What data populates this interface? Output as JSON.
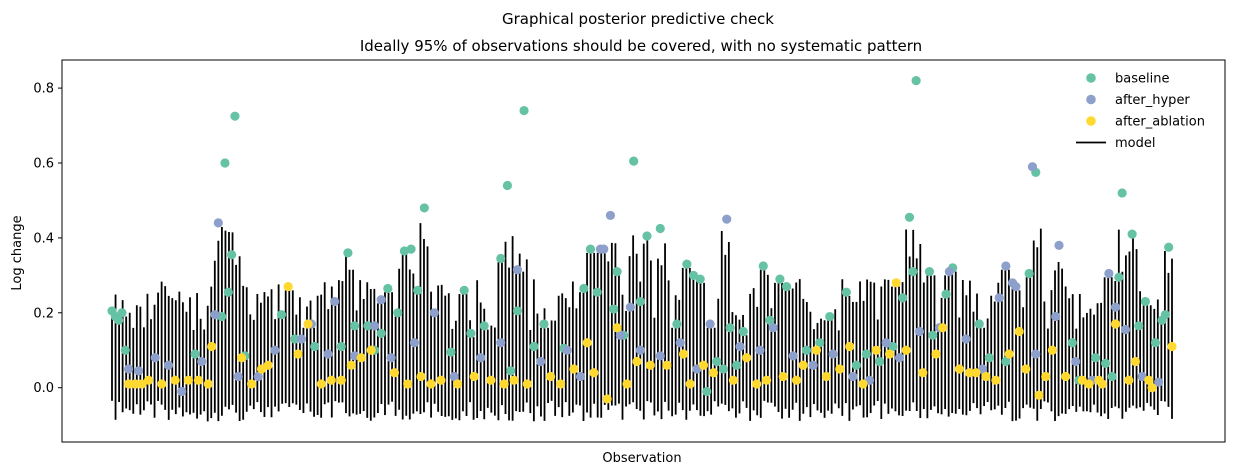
{
  "chart_data": {
    "type": "scatter",
    "suptitle": "Graphical posterior predictive check",
    "title": "Ideally 95% of observations should be covered, with no systematic pattern",
    "xlabel": "Observation",
    "ylabel": "Log change",
    "x_count": 300,
    "ylim": [
      -0.145,
      0.875
    ],
    "yticks": [
      0.0,
      0.2,
      0.4,
      0.6,
      0.8
    ],
    "ytick_labels": [
      "0.0",
      "0.2",
      "0.4",
      "0.6",
      "0.8"
    ],
    "legend": {
      "position": "top-right",
      "entries": [
        {
          "label": "baseline",
          "kind": "marker",
          "color": "#66c2a5"
        },
        {
          "label": "after_hyper",
          "kind": "marker",
          "color": "#8da0cb"
        },
        {
          "label": "after_ablation",
          "kind": "marker",
          "color": "#ffd92f"
        },
        {
          "label": "model",
          "kind": "line",
          "color": "#000000"
        }
      ]
    },
    "series": [
      {
        "name": "baseline",
        "color": "#66c2a5",
        "points": [
          {
            "x": 1,
            "y": 0.205
          },
          {
            "x": 2,
            "y": 0.19
          },
          {
            "x": 3,
            "y": 0.18
          },
          {
            "x": 4,
            "y": 0.2
          },
          {
            "x": 5,
            "y": 0.1
          },
          {
            "x": 26,
            "y": 0.09
          },
          {
            "x": 34,
            "y": 0.19
          },
          {
            "x": 35,
            "y": 0.6
          },
          {
            "x": 36,
            "y": 0.255
          },
          {
            "x": 37,
            "y": 0.355
          },
          {
            "x": 38,
            "y": 0.725
          },
          {
            "x": 41,
            "y": 0.085
          },
          {
            "x": 52,
            "y": 0.195
          },
          {
            "x": 56,
            "y": 0.13
          },
          {
            "x": 62,
            "y": 0.11
          },
          {
            "x": 70,
            "y": 0.11
          },
          {
            "x": 72,
            "y": 0.36
          },
          {
            "x": 74,
            "y": 0.165
          },
          {
            "x": 78,
            "y": 0.165
          },
          {
            "x": 80,
            "y": 0.1
          },
          {
            "x": 82,
            "y": 0.145
          },
          {
            "x": 84,
            "y": 0.265
          },
          {
            "x": 87,
            "y": 0.2
          },
          {
            "x": 89,
            "y": 0.365
          },
          {
            "x": 91,
            "y": 0.37
          },
          {
            "x": 93,
            "y": 0.26
          },
          {
            "x": 95,
            "y": 0.48
          },
          {
            "x": 103,
            "y": 0.095
          },
          {
            "x": 107,
            "y": 0.26
          },
          {
            "x": 109,
            "y": 0.145
          },
          {
            "x": 113,
            "y": 0.165
          },
          {
            "x": 118,
            "y": 0.345
          },
          {
            "x": 120,
            "y": 0.54
          },
          {
            "x": 121,
            "y": 0.045
          },
          {
            "x": 123,
            "y": 0.205
          },
          {
            "x": 125,
            "y": 0.74
          },
          {
            "x": 128,
            "y": 0.11
          },
          {
            "x": 131,
            "y": 0.17
          },
          {
            "x": 137,
            "y": 0.105
          },
          {
            "x": 143,
            "y": 0.265
          },
          {
            "x": 145,
            "y": 0.37
          },
          {
            "x": 147,
            "y": 0.255
          },
          {
            "x": 152,
            "y": 0.21
          },
          {
            "x": 153,
            "y": 0.31
          },
          {
            "x": 155,
            "y": 0.14
          },
          {
            "x": 158,
            "y": 0.605
          },
          {
            "x": 160,
            "y": 0.23
          },
          {
            "x": 162,
            "y": 0.405
          },
          {
            "x": 166,
            "y": 0.425
          },
          {
            "x": 171,
            "y": 0.17
          },
          {
            "x": 174,
            "y": 0.33
          },
          {
            "x": 176,
            "y": 0.3
          },
          {
            "x": 178,
            "y": 0.29
          },
          {
            "x": 180,
            "y": -0.01
          },
          {
            "x": 183,
            "y": 0.07
          },
          {
            "x": 185,
            "y": 0.05
          },
          {
            "x": 187,
            "y": 0.16
          },
          {
            "x": 189,
            "y": 0.06
          },
          {
            "x": 191,
            "y": 0.15
          },
          {
            "x": 197,
            "y": 0.325
          },
          {
            "x": 199,
            "y": 0.18
          },
          {
            "x": 202,
            "y": 0.29
          },
          {
            "x": 204,
            "y": 0.27
          },
          {
            "x": 210,
            "y": 0.1
          },
          {
            "x": 214,
            "y": 0.12
          },
          {
            "x": 217,
            "y": 0.19
          },
          {
            "x": 222,
            "y": 0.255
          },
          {
            "x": 225,
            "y": 0.06
          },
          {
            "x": 228,
            "y": 0.09
          },
          {
            "x": 232,
            "y": 0.07
          },
          {
            "x": 236,
            "y": 0.11
          },
          {
            "x": 239,
            "y": 0.24
          },
          {
            "x": 241,
            "y": 0.455
          },
          {
            "x": 242,
            "y": 0.31
          },
          {
            "x": 243,
            "y": 0.82
          },
          {
            "x": 247,
            "y": 0.31
          },
          {
            "x": 248,
            "y": 0.14
          },
          {
            "x": 252,
            "y": 0.25
          },
          {
            "x": 254,
            "y": 0.32
          },
          {
            "x": 262,
            "y": 0.17
          },
          {
            "x": 265,
            "y": 0.08
          },
          {
            "x": 270,
            "y": 0.07
          },
          {
            "x": 277,
            "y": 0.305
          },
          {
            "x": 279,
            "y": 0.575
          },
          {
            "x": 290,
            "y": 0.12
          },
          {
            "x": 292,
            "y": 0.02
          },
          {
            "x": 297,
            "y": 0.08
          },
          {
            "x": 300,
            "y": 0.065
          },
          {
            "x": 302,
            "y": 0.03
          },
          {
            "x": 304,
            "y": 0.295
          },
          {
            "x": 305,
            "y": 0.52
          },
          {
            "x": 308,
            "y": 0.41
          },
          {
            "x": 310,
            "y": 0.165
          },
          {
            "x": 312,
            "y": 0.23
          },
          {
            "x": 315,
            "y": 0.12
          },
          {
            "x": 317,
            "y": 0.18
          },
          {
            "x": 318,
            "y": 0.195
          },
          {
            "x": 319,
            "y": 0.375
          }
        ]
      },
      {
        "name": "after_hyper",
        "color": "#8da0cb",
        "points": [
          {
            "x": 6,
            "y": 0.05
          },
          {
            "x": 9,
            "y": 0.045
          },
          {
            "x": 14,
            "y": 0.08
          },
          {
            "x": 18,
            "y": 0.06
          },
          {
            "x": 22,
            "y": -0.01
          },
          {
            "x": 28,
            "y": 0.07
          },
          {
            "x": 33,
            "y": 0.44
          },
          {
            "x": 32,
            "y": 0.195
          },
          {
            "x": 39,
            "y": 0.03
          },
          {
            "x": 45,
            "y": 0.03
          },
          {
            "x": 50,
            "y": 0.1
          },
          {
            "x": 58,
            "y": 0.13
          },
          {
            "x": 61,
            "y": 0.17
          },
          {
            "x": 66,
            "y": 0.09
          },
          {
            "x": 68,
            "y": 0.23
          },
          {
            "x": 74,
            "y": 0.085
          },
          {
            "x": 80,
            "y": 0.165
          },
          {
            "x": 82,
            "y": 0.235
          },
          {
            "x": 85,
            "y": 0.08
          },
          {
            "x": 92,
            "y": 0.12
          },
          {
            "x": 98,
            "y": 0.2
          },
          {
            "x": 104,
            "y": 0.03
          },
          {
            "x": 112,
            "y": 0.08
          },
          {
            "x": 118,
            "y": 0.12
          },
          {
            "x": 123,
            "y": 0.315
          },
          {
            "x": 130,
            "y": 0.07
          },
          {
            "x": 138,
            "y": 0.1
          },
          {
            "x": 142,
            "y": 0.03
          },
          {
            "x": 148,
            "y": 0.37
          },
          {
            "x": 149,
            "y": 0.37
          },
          {
            "x": 151,
            "y": 0.46
          },
          {
            "x": 154,
            "y": 0.14
          },
          {
            "x": 157,
            "y": 0.215
          },
          {
            "x": 160,
            "y": 0.1
          },
          {
            "x": 166,
            "y": 0.085
          },
          {
            "x": 172,
            "y": 0.12
          },
          {
            "x": 177,
            "y": 0.05
          },
          {
            "x": 181,
            "y": 0.17
          },
          {
            "x": 186,
            "y": 0.45
          },
          {
            "x": 190,
            "y": 0.11
          },
          {
            "x": 196,
            "y": 0.1
          },
          {
            "x": 200,
            "y": 0.16
          },
          {
            "x": 206,
            "y": 0.085
          },
          {
            "x": 212,
            "y": 0.06
          },
          {
            "x": 218,
            "y": 0.09
          },
          {
            "x": 224,
            "y": 0.03
          },
          {
            "x": 229,
            "y": 0.02
          },
          {
            "x": 234,
            "y": 0.12
          },
          {
            "x": 238,
            "y": 0.08
          },
          {
            "x": 244,
            "y": 0.15
          },
          {
            "x": 250,
            "y": 0.16
          },
          {
            "x": 253,
            "y": 0.31
          },
          {
            "x": 258,
            "y": 0.13
          },
          {
            "x": 263,
            "y": 0.05
          },
          {
            "x": 268,
            "y": 0.24
          },
          {
            "x": 270,
            "y": 0.325
          },
          {
            "x": 272,
            "y": 0.28
          },
          {
            "x": 273,
            "y": 0.27
          },
          {
            "x": 278,
            "y": 0.59
          },
          {
            "x": 279,
            "y": 0.09
          },
          {
            "x": 285,
            "y": 0.19
          },
          {
            "x": 286,
            "y": 0.38
          },
          {
            "x": 291,
            "y": 0.07
          },
          {
            "x": 296,
            "y": 0.02
          },
          {
            "x": 301,
            "y": 0.305
          },
          {
            "x": 303,
            "y": 0.215
          },
          {
            "x": 306,
            "y": 0.155
          },
          {
            "x": 311,
            "y": 0.03
          },
          {
            "x": 316,
            "y": 0.015
          }
        ]
      },
      {
        "name": "after_ablation",
        "color": "#ffd92f",
        "points": [
          {
            "x": 6,
            "y": 0.01
          },
          {
            "x": 8,
            "y": 0.01
          },
          {
            "x": 10,
            "y": 0.01
          },
          {
            "x": 12,
            "y": 0.02
          },
          {
            "x": 16,
            "y": 0.01
          },
          {
            "x": 20,
            "y": 0.02
          },
          {
            "x": 24,
            "y": 0.02
          },
          {
            "x": 27,
            "y": 0.02
          },
          {
            "x": 30,
            "y": 0.01
          },
          {
            "x": 31,
            "y": 0.11
          },
          {
            "x": 40,
            "y": 0.08
          },
          {
            "x": 43,
            "y": 0.01
          },
          {
            "x": 46,
            "y": 0.05
          },
          {
            "x": 48,
            "y": 0.06
          },
          {
            "x": 54,
            "y": 0.27
          },
          {
            "x": 57,
            "y": 0.09
          },
          {
            "x": 60,
            "y": 0.17
          },
          {
            "x": 64,
            "y": 0.01
          },
          {
            "x": 67,
            "y": 0.02
          },
          {
            "x": 70,
            "y": 0.02
          },
          {
            "x": 73,
            "y": 0.06
          },
          {
            "x": 76,
            "y": 0.08
          },
          {
            "x": 79,
            "y": 0.1
          },
          {
            "x": 86,
            "y": 0.04
          },
          {
            "x": 90,
            "y": 0.01
          },
          {
            "x": 94,
            "y": 0.03
          },
          {
            "x": 97,
            "y": 0.01
          },
          {
            "x": 100,
            "y": 0.02
          },
          {
            "x": 105,
            "y": 0.01
          },
          {
            "x": 110,
            "y": 0.03
          },
          {
            "x": 115,
            "y": 0.02
          },
          {
            "x": 119,
            "y": 0.01
          },
          {
            "x": 122,
            "y": 0.02
          },
          {
            "x": 126,
            "y": 0.01
          },
          {
            "x": 133,
            "y": 0.03
          },
          {
            "x": 136,
            "y": 0.01
          },
          {
            "x": 140,
            "y": 0.05
          },
          {
            "x": 144,
            "y": 0.12
          },
          {
            "x": 146,
            "y": 0.04
          },
          {
            "x": 150,
            "y": -0.03
          },
          {
            "x": 153,
            "y": 0.16
          },
          {
            "x": 156,
            "y": 0.01
          },
          {
            "x": 159,
            "y": 0.07
          },
          {
            "x": 163,
            "y": 0.06
          },
          {
            "x": 168,
            "y": 0.06
          },
          {
            "x": 173,
            "y": 0.09
          },
          {
            "x": 175,
            "y": 0.01
          },
          {
            "x": 179,
            "y": 0.06
          },
          {
            "x": 182,
            "y": 0.04
          },
          {
            "x": 188,
            "y": 0.02
          },
          {
            "x": 192,
            "y": 0.08
          },
          {
            "x": 195,
            "y": 0.01
          },
          {
            "x": 198,
            "y": 0.02
          },
          {
            "x": 203,
            "y": 0.03
          },
          {
            "x": 207,
            "y": 0.02
          },
          {
            "x": 209,
            "y": 0.06
          },
          {
            "x": 213,
            "y": 0.1
          },
          {
            "x": 216,
            "y": 0.03
          },
          {
            "x": 220,
            "y": 0.05
          },
          {
            "x": 223,
            "y": 0.11
          },
          {
            "x": 227,
            "y": 0.01
          },
          {
            "x": 231,
            "y": 0.1
          },
          {
            "x": 235,
            "y": 0.09
          },
          {
            "x": 237,
            "y": 0.28
          },
          {
            "x": 240,
            "y": 0.1
          },
          {
            "x": 245,
            "y": 0.04
          },
          {
            "x": 249,
            "y": 0.09
          },
          {
            "x": 251,
            "y": 0.16
          },
          {
            "x": 256,
            "y": 0.05
          },
          {
            "x": 259,
            "y": 0.04
          },
          {
            "x": 261,
            "y": 0.04
          },
          {
            "x": 264,
            "y": 0.03
          },
          {
            "x": 267,
            "y": 0.02
          },
          {
            "x": 271,
            "y": 0.09
          },
          {
            "x": 274,
            "y": 0.15
          },
          {
            "x": 276,
            "y": 0.05
          },
          {
            "x": 280,
            "y": -0.02
          },
          {
            "x": 282,
            "y": 0.03
          },
          {
            "x": 284,
            "y": 0.1
          },
          {
            "x": 288,
            "y": 0.03
          },
          {
            "x": 293,
            "y": 0.02
          },
          {
            "x": 295,
            "y": 0.01
          },
          {
            "x": 298,
            "y": 0.02
          },
          {
            "x": 299,
            "y": 0.01
          },
          {
            "x": 303,
            "y": 0.17
          },
          {
            "x": 307,
            "y": 0.02
          },
          {
            "x": 309,
            "y": 0.07
          },
          {
            "x": 313,
            "y": 0.02
          },
          {
            "x": 314,
            "y": 0.0
          },
          {
            "x": 320,
            "y": 0.11
          }
        ]
      }
    ]
  }
}
